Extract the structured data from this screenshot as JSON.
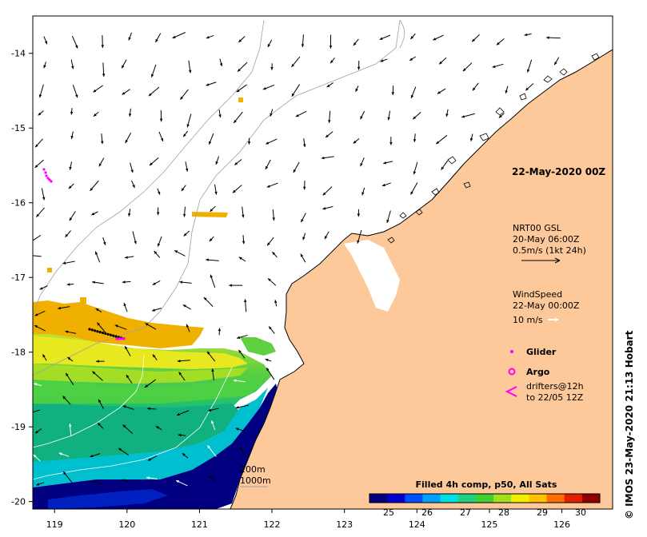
{
  "timestamp_label": "22-May-2020 00Z",
  "current_legend": {
    "title": "NRT00 GSL",
    "date": "20-May 06:00Z",
    "scale": "0.5m/s (1kt 24h)"
  },
  "wind_legend": {
    "title": "WindSpeed",
    "date": "22-May 00:00Z",
    "scale": "10 m/s"
  },
  "symbol_legend": {
    "glider": "Glider",
    "argo": "Argo",
    "drifters_line1": "drifters@12h",
    "drifters_line2": "to 22/05 12Z"
  },
  "bathymetry_legend": {
    "contour1": "200m",
    "contour2": "1000m"
  },
  "colorbar": {
    "title": "Filled 4h comp, p50, All Sats",
    "ticks": [
      "25",
      "26",
      "27",
      "28",
      "29",
      "30"
    ],
    "min": 24.5,
    "max": 30.5,
    "colors": [
      "#000080",
      "#0000d0",
      "#0050ff",
      "#00a0ff",
      "#00e0e0",
      "#20d080",
      "#40d030",
      "#a0e020",
      "#f0f000",
      "#ffc000",
      "#ff7000",
      "#e02000",
      "#900000"
    ]
  },
  "axes": {
    "x_ticks": [
      "119",
      "120",
      "121",
      "122",
      "123",
      "124",
      "125",
      "126"
    ],
    "y_ticks": [
      "-14",
      "-15",
      "-16",
      "-17",
      "-18",
      "-19",
      "-20"
    ],
    "lon_range": [
      118.7,
      126.7
    ],
    "lat_range": [
      -20.1,
      -13.5
    ]
  },
  "colors": {
    "land": "#fdc99a",
    "glider": "#ff00ff",
    "argo": "#ff00ff",
    "drifter": "#ff00ff"
  },
  "credit": "© IMOS 23-May-2020 21:13 Hobart"
}
